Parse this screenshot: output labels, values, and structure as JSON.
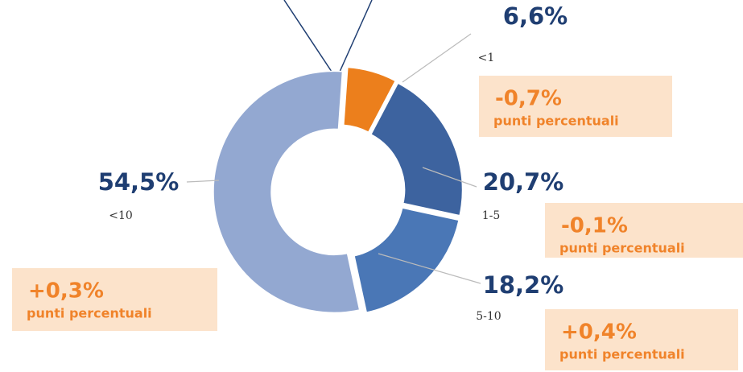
{
  "chart_data": {
    "type": "pie",
    "categories": [
      "<1",
      "1-5",
      "5-10",
      "<10"
    ],
    "values": [
      6.6,
      20.7,
      18.2,
      54.5
    ],
    "value_labels": [
      "6,6%",
      "20,7%",
      "18,2%",
      "54,5%"
    ],
    "colors": [
      "#ec7f1c",
      "#3d639f",
      "#4a77b6",
      "#93a8d1"
    ],
    "annotations": [
      {
        "change": "-0,7%",
        "note": "punti percentuali"
      },
      {
        "change": "-0,1%",
        "note": "punti percentuali"
      },
      {
        "change": "+0,4%",
        "note": "punti percentuali"
      },
      {
        "change": "+0,3%",
        "note": "punti percentuali"
      }
    ]
  }
}
